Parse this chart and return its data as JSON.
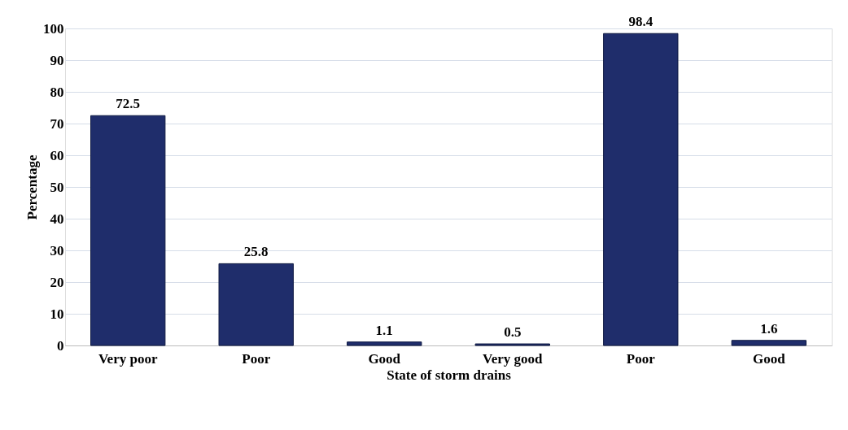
{
  "chart_data": {
    "type": "bar",
    "xlabel": "State of storm drains",
    "ylabel": "Percentage",
    "categories": [
      "Very poor",
      "Poor",
      "Good",
      "Very good",
      "Poor",
      "Good"
    ],
    "values": [
      72.5,
      25.8,
      1.1,
      0.5,
      98.4,
      1.6
    ],
    "color": "#1f2d6b",
    "ylim": [
      0,
      100
    ],
    "yticks": [
      0,
      10,
      20,
      30,
      40,
      50,
      60,
      70,
      80,
      90,
      100
    ],
    "grid": "y",
    "data_labels": true
  }
}
